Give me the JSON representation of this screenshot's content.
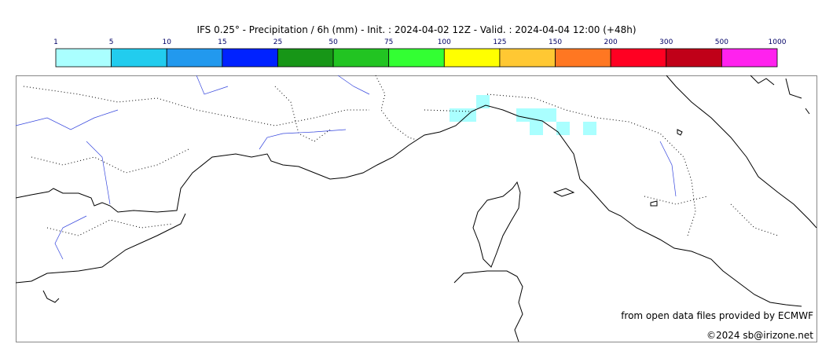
{
  "title": "IFS 0.25° - Precipitation / 6h (mm) - Init. : 2024-04-02 12Z - Valid. : 2024-04-04 12:00 (+48h)",
  "colorbar": {
    "ticks": [
      1,
      5,
      10,
      15,
      25,
      50,
      75,
      100,
      125,
      150,
      200,
      300,
      500,
      1000
    ],
    "colors": [
      "#aaffff",
      "#22ccee",
      "#2299ee",
      "#0022ff",
      "#179617",
      "#22c422",
      "#33ff33",
      "#ffff00",
      "#ffc833",
      "#ff7722",
      "#ff0022",
      "#c00018",
      "#ff22ee"
    ]
  },
  "credits": [
    "from open data files provided by ECMWF",
    "©2024 sb@irizone.net"
  ]
}
